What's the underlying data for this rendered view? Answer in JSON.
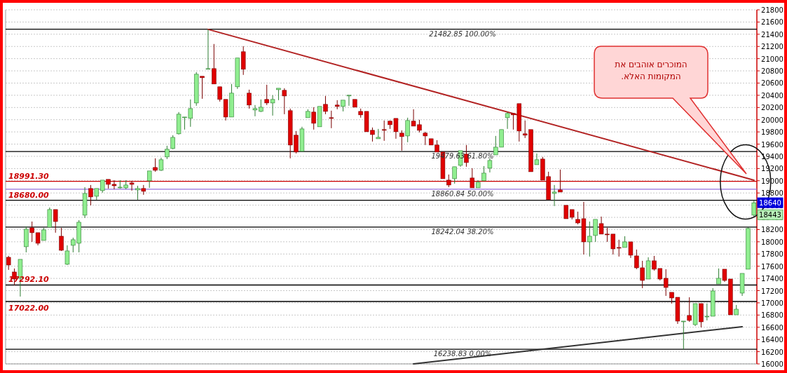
{
  "chart_data": {
    "type": "candlestick",
    "categories": [
      null,
      null,
      null,
      null,
      null,
      null,
      null,
      null,
      null,
      null,
      null,
      null,
      null,
      null,
      null,
      null,
      null,
      null,
      null,
      null,
      null,
      null,
      null,
      null,
      null,
      null,
      null,
      null,
      null,
      null,
      null,
      null,
      null,
      null,
      null,
      null,
      null,
      null,
      null,
      null,
      null,
      null,
      null,
      null,
      null,
      null,
      null,
      null,
      null,
      null,
      null,
      null,
      null,
      null,
      null,
      null,
      null,
      null,
      null,
      null,
      null,
      null,
      null,
      null,
      null,
      null,
      null,
      null,
      null,
      null,
      null,
      null,
      null,
      null,
      null,
      null,
      null,
      null,
      null,
      null,
      null,
      null,
      null,
      null,
      null,
      null,
      null,
      null,
      null,
      null,
      null,
      null,
      null,
      null,
      null,
      null,
      null,
      null,
      null,
      null,
      null,
      null,
      null,
      null,
      null,
      null,
      null,
      null,
      null,
      null,
      null,
      null,
      null,
      null,
      null,
      null,
      null,
      null,
      null,
      null,
      null,
      null,
      null,
      null,
      null,
      null,
      null,
      null
    ],
    "ohlc": [
      [
        17746,
        17770,
        17540,
        17620
      ],
      [
        17505,
        17563,
        17287,
        17390
      ],
      [
        17402,
        17712,
        17103,
        17712
      ],
      [
        17919,
        18252,
        17827,
        18206
      ],
      [
        18229,
        18332,
        17999,
        18149
      ],
      [
        18149,
        18149,
        17942,
        17976
      ],
      [
        18022,
        18229,
        18022,
        18195
      ],
      [
        18240,
        18562,
        18240,
        18528
      ],
      [
        18528,
        18528,
        18149,
        18332
      ],
      [
        18091,
        18229,
        17850,
        17861
      ],
      [
        17632,
        17942,
        17620,
        17850
      ],
      [
        17942,
        18068,
        17827,
        18034
      ],
      [
        17976,
        18355,
        17827,
        18321
      ],
      [
        18436,
        18895,
        18390,
        18792
      ],
      [
        18873,
        18930,
        18597,
        18735
      ],
      [
        18746,
        18873,
        18689,
        18873
      ],
      [
        18838,
        19010,
        18804,
        19010
      ],
      [
        19022,
        19022,
        18873,
        18941
      ],
      [
        18941,
        19010,
        18861,
        18918
      ],
      [
        18884,
        19010,
        18873,
        18895
      ],
      [
        18884,
        19010,
        18861,
        18930
      ],
      [
        18964,
        18999,
        18838,
        18941
      ],
      [
        18850,
        18918,
        18689,
        18873
      ],
      [
        18873,
        18930,
        18769,
        18827
      ],
      [
        18999,
        19160,
        18884,
        19160
      ],
      [
        19217,
        19367,
        19148,
        19171
      ],
      [
        19171,
        19378,
        19160,
        19344
      ],
      [
        19390,
        19573,
        19355,
        19516
      ],
      [
        19527,
        19746,
        19516,
        19711
      ],
      [
        19769,
        20125,
        19757,
        20090
      ],
      [
        20033,
        20044,
        19838,
        20044
      ],
      [
        20022,
        20332,
        19884,
        20182
      ],
      [
        20274,
        20780,
        20228,
        20745
      ],
      [
        20711,
        20711,
        20343,
        20688
      ],
      [
        20837,
        21480,
        20826,
        20837
      ],
      [
        20837,
        21240,
        20585,
        20585
      ],
      [
        20539,
        20539,
        20297,
        20332
      ],
      [
        20332,
        20332,
        19987,
        20044
      ],
      [
        20044,
        20585,
        20044,
        20435
      ],
      [
        20539,
        21010,
        20505,
        21010
      ],
      [
        21113,
        21205,
        20734,
        20826
      ],
      [
        20435,
        20492,
        20182,
        20240
      ],
      [
        20159,
        20240,
        20056,
        20182
      ],
      [
        20136,
        20332,
        20125,
        20205
      ],
      [
        20332,
        20573,
        20240,
        20274
      ],
      [
        20274,
        20401,
        20067,
        20332
      ],
      [
        20492,
        20515,
        20320,
        20515
      ],
      [
        20481,
        20515,
        20090,
        20389
      ],
      [
        20148,
        20182,
        19367,
        19585
      ],
      [
        19746,
        19815,
        19447,
        19470
      ],
      [
        19482,
        19884,
        19482,
        19849
      ],
      [
        20033,
        20171,
        20033,
        20136
      ],
      [
        20125,
        20205,
        19838,
        19941
      ],
      [
        19884,
        20217,
        19884,
        20217
      ],
      [
        20251,
        20389,
        20090,
        20136
      ],
      [
        20033,
        20148,
        19861,
        20021
      ],
      [
        20240,
        20320,
        20171,
        20217
      ],
      [
        20217,
        20320,
        20136,
        20320
      ],
      [
        20389,
        20401,
        20228,
        20401
      ],
      [
        20332,
        20332,
        20205,
        20205
      ],
      [
        20136,
        20182,
        20033,
        20079
      ],
      [
        20136,
        20136,
        19803,
        19803
      ],
      [
        19826,
        19872,
        19642,
        19757
      ],
      [
        19688,
        19849,
        19688,
        19711
      ],
      [
        19838,
        19987,
        19654,
        19826
      ],
      [
        19976,
        19987,
        19849,
        19918
      ],
      [
        20021,
        20021,
        19688,
        19803
      ],
      [
        19780,
        19826,
        19493,
        19723
      ],
      [
        19734,
        20033,
        19631,
        19987
      ],
      [
        19976,
        20171,
        19895,
        19895
      ],
      [
        19918,
        19999,
        19792,
        19826
      ],
      [
        19780,
        19803,
        19585,
        19734
      ],
      [
        19688,
        19688,
        19585,
        19585
      ],
      [
        19585,
        19665,
        19470,
        19470
      ],
      [
        19470,
        19470,
        19033,
        19033
      ],
      [
        19010,
        19102,
        18895,
        18930
      ],
      [
        19033,
        19229,
        18953,
        19229
      ],
      [
        19252,
        19493,
        19229,
        19493
      ],
      [
        19436,
        19585,
        19229,
        19298
      ],
      [
        19045,
        19206,
        18884,
        18884
      ],
      [
        18884,
        19010,
        18884,
        18976
      ],
      [
        18999,
        19240,
        18999,
        19125
      ],
      [
        19206,
        19367,
        19136,
        19332
      ],
      [
        19424,
        19734,
        19424,
        19550
      ],
      [
        19550,
        19838,
        19550,
        19838
      ],
      [
        20033,
        20125,
        19849,
        20102
      ],
      [
        20102,
        20102,
        19838,
        20079
      ],
      [
        20263,
        20263,
        19642,
        19815
      ],
      [
        19769,
        19987,
        19700,
        19746
      ],
      [
        19838,
        19838,
        19148,
        19148
      ],
      [
        19263,
        19447,
        19263,
        19344
      ],
      [
        19355,
        19390,
        19010,
        19010
      ],
      [
        19068,
        19148,
        18689,
        18689
      ],
      [
        18792,
        18930,
        18585,
        18815
      ],
      [
        18850,
        19183,
        18815,
        18815
      ],
      [
        18597,
        18597,
        18378,
        18378
      ],
      [
        18528,
        18528,
        18367,
        18401
      ],
      [
        18367,
        18494,
        18286,
        18309
      ],
      [
        18378,
        18654,
        17792,
        17999
      ],
      [
        17999,
        18332,
        17758,
        18091
      ],
      [
        18103,
        18367,
        17999,
        18367
      ],
      [
        18298,
        18413,
        18126,
        18126
      ],
      [
        18126,
        18229,
        17999,
        18114
      ],
      [
        18126,
        18126,
        17792,
        17884
      ],
      [
        17907,
        18034,
        17758,
        17896
      ],
      [
        17907,
        18091,
        17907,
        17999
      ],
      [
        17999,
        17999,
        17735,
        17781
      ],
      [
        17769,
        17873,
        17551,
        17574
      ],
      [
        17574,
        17689,
        17241,
        17367
      ],
      [
        17390,
        17746,
        17390,
        17689
      ],
      [
        17689,
        17769,
        17528,
        17551
      ],
      [
        17563,
        17563,
        17367,
        17390
      ],
      [
        17402,
        17551,
        17114,
        17252
      ],
      [
        17172,
        17172,
        16988,
        17080
      ],
      [
        17091,
        17091,
        16655,
        16701
      ],
      [
        16701,
        16701,
        16240,
        16701
      ],
      [
        16793,
        17091,
        16689,
        16712
      ],
      [
        16643,
        16988,
        16620,
        16988
      ],
      [
        16988,
        16988,
        16597,
        16689
      ],
      [
        16781,
        16988,
        16712,
        16781
      ],
      [
        16781,
        17241,
        16781,
        17195
      ],
      [
        17310,
        17563,
        17310,
        17402
      ],
      [
        17551,
        17551,
        17344,
        17367
      ],
      [
        17390,
        17390,
        16804,
        16804
      ],
      [
        16804,
        16965,
        16804,
        16896
      ],
      [
        17160,
        17482,
        17114,
        17482
      ],
      [
        17551,
        18241,
        17551,
        18218
      ],
      [
        18436,
        18677,
        18413,
        18640
      ]
    ],
    "series": [
      {
        "type": "line",
        "values": [
          null,
          null,
          null,
          null,
          null,
          null,
          null,
          null,
          null,
          null,
          null,
          null,
          null,
          null,
          null,
          null,
          null,
          null,
          null,
          null,
          null,
          null,
          null,
          null,
          null,
          null,
          null,
          null,
          null,
          null,
          null,
          null,
          null,
          null,
          21480,
          null,
          null,
          null,
          null,
          null,
          null,
          null,
          null,
          null,
          null,
          null,
          null,
          null,
          null,
          null,
          null,
          null,
          null,
          null,
          null,
          null,
          null,
          null,
          null,
          null,
          null,
          null,
          null,
          null,
          null,
          null,
          null,
          null,
          null,
          null,
          null,
          null,
          null,
          null,
          null,
          null,
          null,
          null,
          null,
          null,
          null,
          null,
          null,
          null,
          null,
          null,
          null,
          null,
          null,
          null,
          null,
          null,
          null,
          null,
          null,
          null,
          null,
          null,
          null,
          null,
          null,
          null,
          null,
          null,
          null,
          null,
          null,
          null,
          null,
          null,
          null,
          null,
          null,
          null,
          null,
          null,
          null,
          null,
          null,
          null,
          null,
          null,
          null,
          null,
          null,
          null,
          null,
          19010
        ],
        "color": "#b22222"
      },
      {
        "type": "line",
        "values": [
          null,
          null,
          null,
          null,
          null,
          null,
          null,
          null,
          null,
          null,
          null,
          null,
          null,
          null,
          null,
          null,
          null,
          null,
          null,
          null,
          null,
          null,
          null,
          null,
          null,
          null,
          null,
          null,
          null,
          null,
          null,
          null,
          null,
          null,
          null,
          null,
          null,
          null,
          null,
          null,
          null,
          null,
          null,
          null,
          null,
          null,
          null,
          null,
          null,
          null,
          null,
          null,
          null,
          null,
          null,
          null,
          null,
          null,
          null,
          null,
          null,
          null,
          null,
          null,
          null,
          null,
          null,
          null,
          null,
          16000,
          null,
          null,
          null,
          null,
          null,
          null,
          null,
          null,
          null,
          null,
          null,
          null,
          null,
          null,
          null,
          null,
          null,
          null,
          null,
          null,
          null,
          null,
          null,
          null,
          null,
          null,
          null,
          null,
          null,
          null,
          null,
          null,
          null,
          null,
          null,
          null,
          null,
          null,
          null,
          null,
          null,
          null,
          null,
          null,
          null,
          null,
          null,
          null,
          null,
          null,
          null,
          null,
          null,
          null,
          null,
          16610,
          null,
          null
        ],
        "color": "#333333"
      }
    ],
    "ylim": [
      16000,
      21800
    ],
    "yticks": [
      16000,
      16200,
      16400,
      16600,
      16800,
      17000,
      17200,
      17400,
      17600,
      17800,
      18000,
      18200,
      18400,
      18600,
      18800,
      19000,
      19200,
      19400,
      19600,
      19800,
      20000,
      20200,
      20400,
      20600,
      20800,
      21000,
      21200,
      21400,
      21600,
      21800
    ],
    "grid": "y",
    "ref_lines": [
      {
        "axis": "y",
        "value": 18991.3,
        "label": "18991.30",
        "color": "#cc0000"
      },
      {
        "axis": "y",
        "value": 18680,
        "label": "18680.00",
        "color": "#000000"
      },
      {
        "axis": "y",
        "value": 17292.1,
        "label": "17292.10",
        "color": "#000000"
      },
      {
        "axis": "y",
        "value": 17022,
        "label": "17022.00",
        "color": "#000000"
      },
      {
        "axis": "y",
        "value": 21482.85,
        "label": "21482.85 100.00%",
        "color": "#000000"
      },
      {
        "axis": "y",
        "value": 19479.63,
        "label": "19479.63 61.80%",
        "color": "#000000"
      },
      {
        "axis": "y",
        "value": 18860.84,
        "label": "18860.84 50.00%",
        "color": "#9370db"
      },
      {
        "axis": "y",
        "value": 18242.04,
        "label": "18242.04 38.20%",
        "color": "#000000"
      },
      {
        "axis": "y",
        "value": 16238.83,
        "label": "16238.83 0.00%",
        "color": "#000000"
      }
    ],
    "annotations": [
      "המוכרים אוהבים את המקומות האלא.",
      {
        "text": "18640",
        "y": 18640
      },
      {
        "text": "18443",
        "y": 18443
      }
    ]
  }
}
